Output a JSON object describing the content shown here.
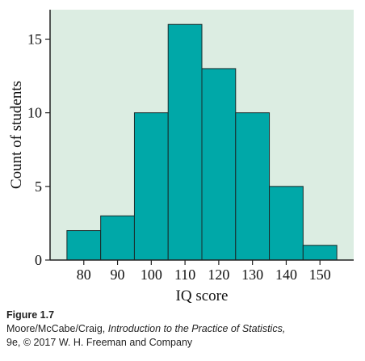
{
  "chart_data": {
    "type": "bar",
    "subtype": "histogram",
    "xlabel": "IQ score",
    "ylabel": "Count of students",
    "bins": [
      {
        "start": 75,
        "end": 85,
        "count": 2
      },
      {
        "start": 85,
        "end": 95,
        "count": 3
      },
      {
        "start": 95,
        "end": 105,
        "count": 10
      },
      {
        "start": 105,
        "end": 115,
        "count": 16
      },
      {
        "start": 115,
        "end": 125,
        "count": 13
      },
      {
        "start": 125,
        "end": 135,
        "count": 10
      },
      {
        "start": 135,
        "end": 145,
        "count": 5
      },
      {
        "start": 145,
        "end": 155,
        "count": 1
      }
    ],
    "x_ticks": [
      80,
      90,
      100,
      110,
      120,
      130,
      140,
      150
    ],
    "y_ticks": [
      0,
      5,
      10,
      15
    ],
    "xlim": [
      70,
      160
    ],
    "ylim": [
      0,
      17
    ],
    "grid": false,
    "colors": {
      "plot_background": "#dcede2",
      "bar_fill": "#00a8a8",
      "bar_stroke": "#1a2a2a",
      "axis": "#222222"
    }
  },
  "caption": {
    "label": "Figure 1.7",
    "line1_prefix": "Moore/McCabe/Craig, ",
    "line1_title": "Introduction to the Practice of Statistics,",
    "line2": "9e, © 2017 W. H. Freeman and Company"
  }
}
